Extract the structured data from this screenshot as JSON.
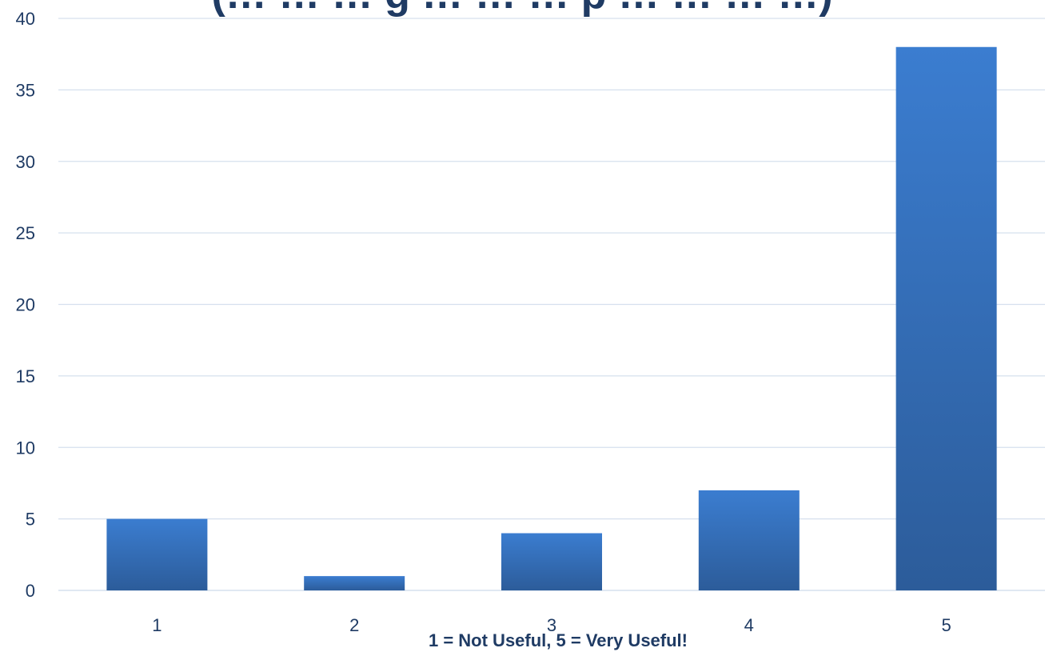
{
  "chart_data": {
    "type": "bar",
    "title": "(… … … g … … … p … … … …)",
    "xlabel": "1 = Not Useful, 5 = Very Useful!",
    "ylabel": "",
    "categories": [
      "1",
      "2",
      "3",
      "4",
      "5"
    ],
    "values": [
      5,
      1,
      4,
      7,
      38
    ],
    "ylim": [
      0,
      40
    ],
    "yticks": [
      0,
      5,
      10,
      15,
      20,
      25,
      30,
      35,
      40
    ],
    "grid": true,
    "legend": "none",
    "colors": {
      "bar_top": "#3b7dd0",
      "bar_bottom": "#2c5c9a",
      "grid": "#d6e0ee",
      "text": "#1f3b64"
    }
  }
}
